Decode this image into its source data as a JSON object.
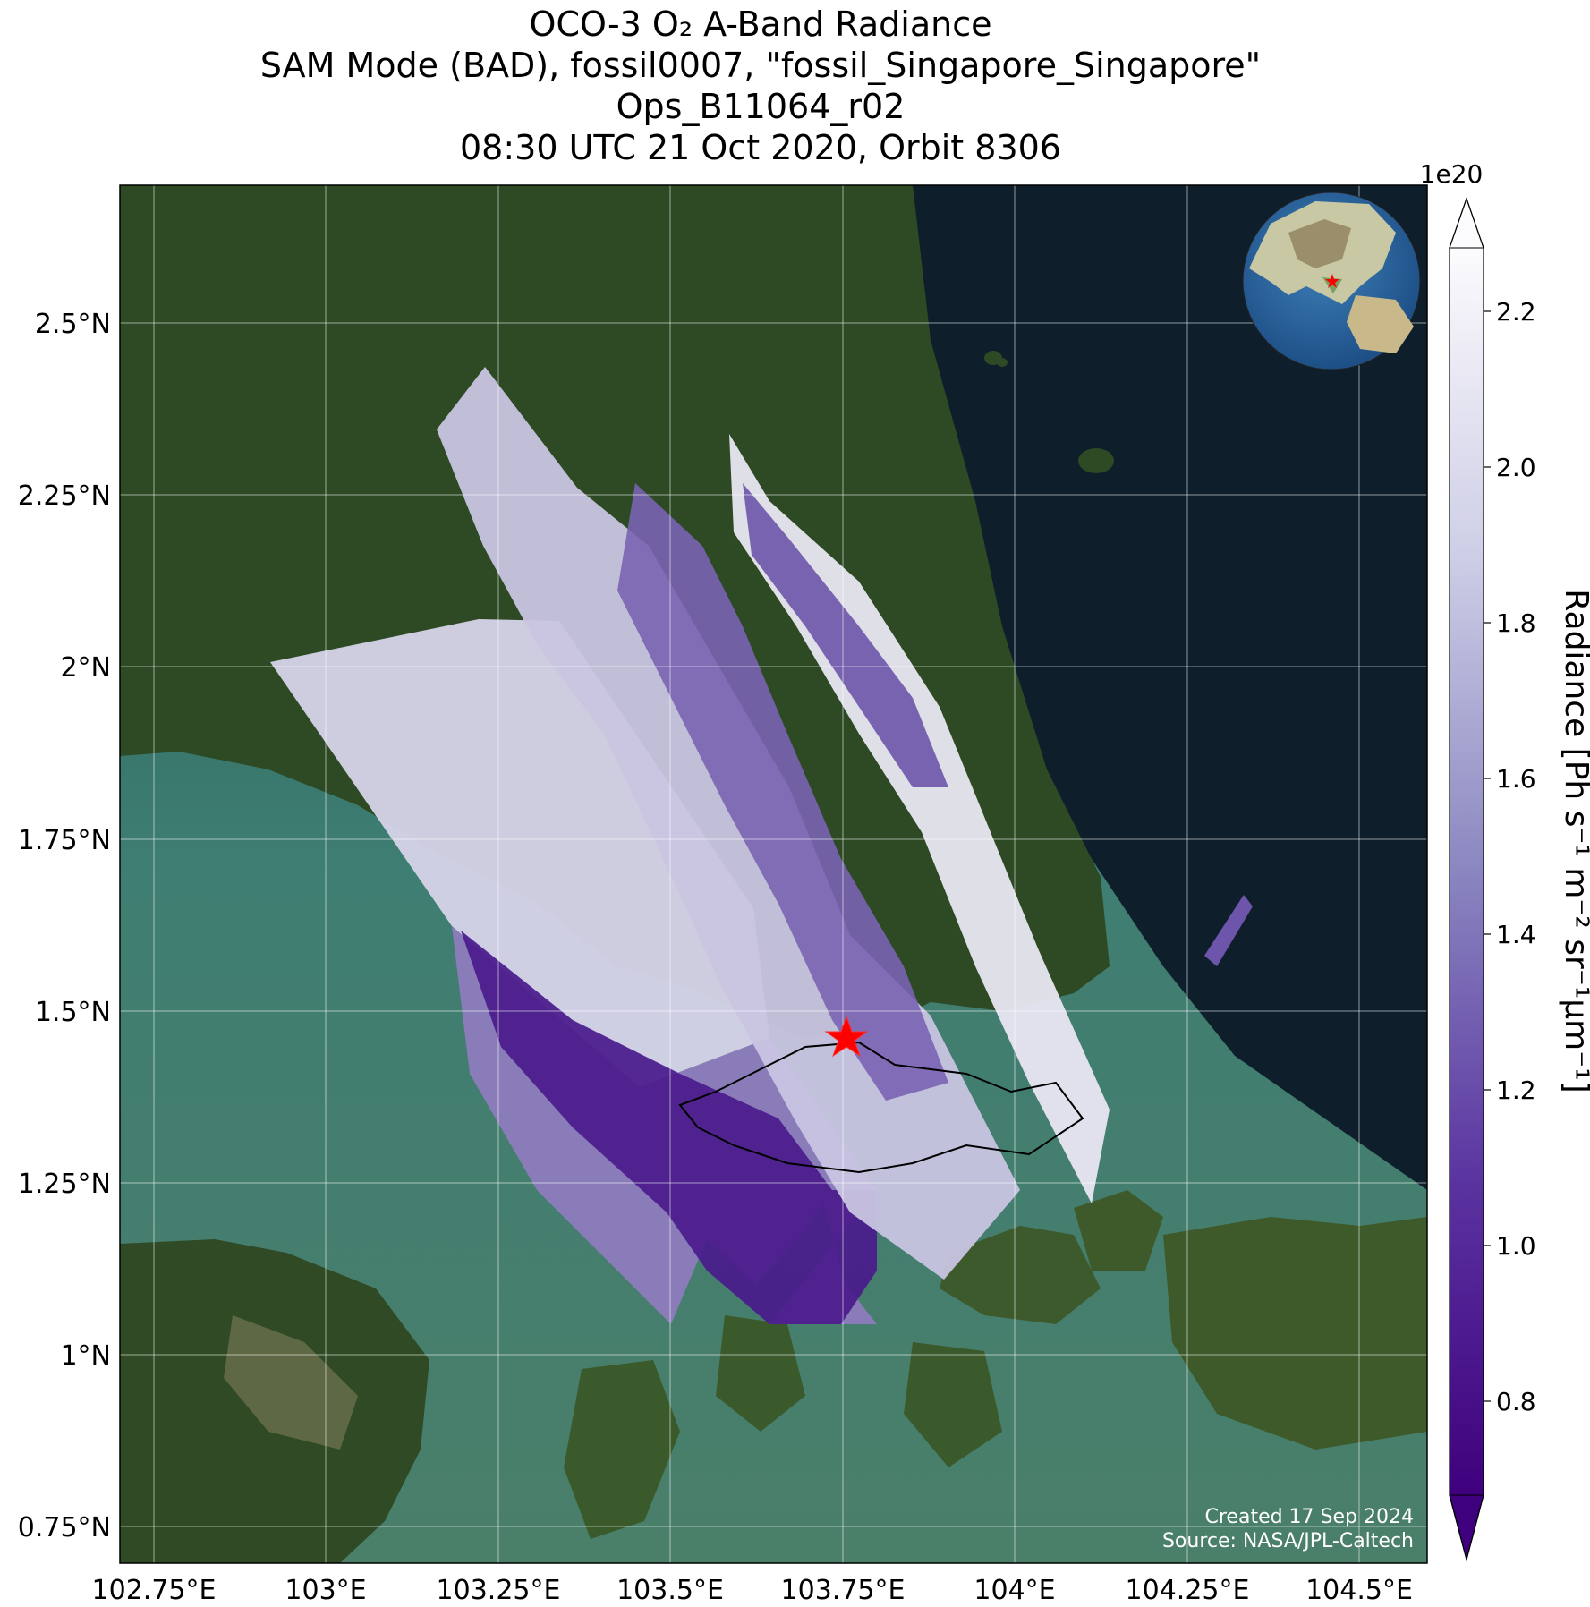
{
  "title": {
    "line1": "OCO-3 O₂ A-Band Radiance",
    "line2": "SAM Mode (BAD), fossil0007, \"fossil_Singapore_Singapore\"",
    "line3": "Ops_B11064_r02",
    "line4": "08:30 UTC 21 Oct 2020, Orbit 8306"
  },
  "map": {
    "lon_ticks": [
      "102.75°E",
      "103°E",
      "103.25°E",
      "103.5°E",
      "103.75°E",
      "104°E",
      "104.25°E",
      "104.5°E"
    ],
    "lat_ticks": [
      "2.5°N",
      "2.25°N",
      "2°N",
      "1.75°N",
      "1.5°N",
      "1.25°N",
      "1°N",
      "0.75°N"
    ],
    "target_marker": "red-star",
    "credit_line1": "Created 17 Sep 2024",
    "credit_line2": "Source: NASA/JPL-Caltech"
  },
  "colorbar": {
    "scale_label": "1e20",
    "label": "Radiance [Ph s⁻¹ m⁻² sr⁻¹μm⁻¹]",
    "ticks": [
      "2.2",
      "2.0",
      "1.8",
      "1.6",
      "1.4",
      "1.2",
      "1.0",
      "0.8"
    ],
    "extend": "both",
    "colormap": "Purples_r",
    "colors": {
      "low": "#3f007d",
      "high": "#fcfbfd"
    }
  },
  "inset": {
    "name": "globe-locator",
    "marker": "red-star"
  }
}
